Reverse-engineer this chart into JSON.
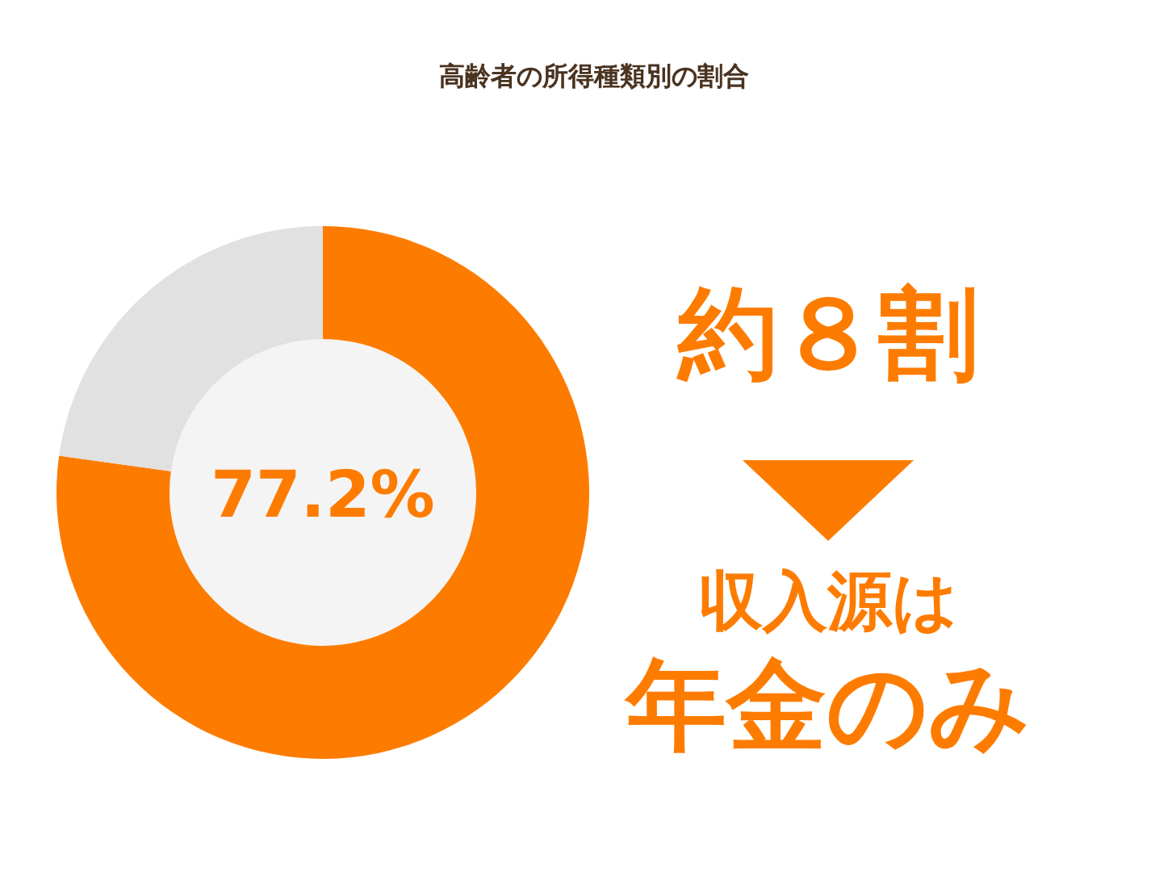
{
  "chart_data": {
    "type": "donut",
    "title": "高齢者の所得種類別の割合",
    "categories": [
      null,
      null
    ],
    "values": [
      77.2,
      22.8
    ],
    "colors": [
      "#fd7c00",
      "#e1e1e1"
    ],
    "annotations": [
      "77.2%",
      "約８割",
      "収入源は",
      "年金のみ"
    ]
  }
}
